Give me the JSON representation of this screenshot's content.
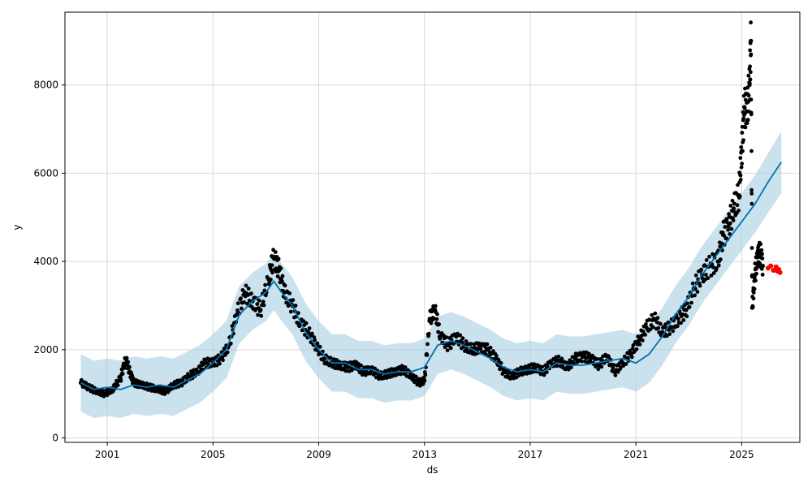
{
  "chart_data": {
    "type": "scatter",
    "title": "",
    "xlabel": "ds",
    "ylabel": "y",
    "xlim": [
      1999.4,
      2027.2
    ],
    "ylim": [
      -100,
      9650
    ],
    "x_ticks": [
      2001,
      2005,
      2009,
      2013,
      2017,
      2021,
      2025
    ],
    "x_tick_labels": [
      "2001",
      "2005",
      "2009",
      "2013",
      "2017",
      "2021",
      "2025"
    ],
    "y_ticks": [
      0,
      2000,
      4000,
      6000,
      8000
    ],
    "y_tick_labels": [
      "0",
      "2000",
      "4000",
      "6000",
      "8000"
    ],
    "grid": true,
    "colors": {
      "observed": "#000000",
      "forecast": "#0072B2",
      "interval": "#a6cde3",
      "test": "#ff0000",
      "grid": "#d9d9d9"
    },
    "observed": {
      "x": [
        2000.0,
        2000.3,
        2000.6,
        2000.9,
        2001.2,
        2001.5,
        2001.7,
        2001.85,
        2002.0,
        2002.3,
        2002.6,
        2002.9,
        2003.2,
        2003.5,
        2003.8,
        2004.1,
        2004.4,
        2004.7,
        2005.0,
        2005.3,
        2005.6,
        2005.9,
        2006.2,
        2006.5,
        2006.8,
        2007.1,
        2007.3,
        2007.5,
        2007.7,
        2008.0,
        2008.3,
        2008.6,
        2008.9,
        2009.2,
        2009.5,
        2009.8,
        2010.1,
        2010.4,
        2010.7,
        2011.0,
        2011.3,
        2011.6,
        2011.9,
        2012.2,
        2012.5,
        2012.8,
        2013.0,
        2013.2,
        2013.4,
        2013.6,
        2013.9,
        2014.2,
        2014.5,
        2014.8,
        2015.1,
        2015.4,
        2015.7,
        2016.0,
        2016.3,
        2016.6,
        2016.9,
        2017.2,
        2017.5,
        2017.8,
        2018.1,
        2018.4,
        2018.7,
        2019.0,
        2019.3,
        2019.6,
        2019.9,
        2020.2,
        2020.5,
        2020.8,
        2021.1,
        2021.4,
        2021.7,
        2022.0,
        2022.3,
        2022.6,
        2022.9,
        2023.2,
        2023.5,
        2023.8,
        2024.1,
        2024.3,
        2024.5,
        2024.7,
        2024.9,
        2025.0,
        2025.1,
        2025.2,
        2025.3,
        2025.35,
        2025.4,
        2025.5,
        2025.6,
        2025.7,
        2025.8
      ],
      "y": [
        1250,
        1150,
        1050,
        1000,
        1100,
        1350,
        1800,
        1500,
        1250,
        1200,
        1150,
        1100,
        1050,
        1200,
        1250,
        1400,
        1500,
        1700,
        1700,
        1800,
        2100,
        2800,
        3300,
        3100,
        2900,
        3600,
        4100,
        3800,
        3300,
        3000,
        2600,
        2400,
        2100,
        1800,
        1700,
        1650,
        1600,
        1650,
        1500,
        1550,
        1400,
        1450,
        1500,
        1550,
        1400,
        1250,
        1300,
        2700,
        2900,
        2300,
        2100,
        2300,
        2100,
        2000,
        2050,
        2000,
        1800,
        1500,
        1400,
        1500,
        1550,
        1600,
        1500,
        1700,
        1750,
        1600,
        1800,
        1850,
        1800,
        1650,
        1850,
        1500,
        1700,
        1900,
        2200,
        2500,
        2700,
        2400,
        2500,
        2700,
        2900,
        3400,
        3700,
        3900,
        4000,
        4600,
        4800,
        5200,
        5500,
        6500,
        7500,
        7400,
        8000,
        9000,
        2950,
        3700,
        4100,
        4200,
        3900
      ]
    },
    "forecast": {
      "x": [
        2000.0,
        2000.5,
        2001.0,
        2001.5,
        2002.0,
        2002.5,
        2003.0,
        2003.5,
        2004.0,
        2004.5,
        2005.0,
        2005.5,
        2006.0,
        2006.5,
        2007.0,
        2007.3,
        2007.6,
        2008.0,
        2008.5,
        2009.0,
        2009.5,
        2010.0,
        2010.5,
        2011.0,
        2011.5,
        2012.0,
        2012.5,
        2013.0,
        2013.5,
        2014.0,
        2014.5,
        2015.0,
        2015.5,
        2016.0,
        2016.5,
        2017.0,
        2017.5,
        2018.0,
        2018.5,
        2019.0,
        2019.5,
        2020.0,
        2020.5,
        2021.0,
        2021.5,
        2022.0,
        2022.5,
        2023.0,
        2023.5,
        2024.0,
        2024.5,
        2025.0,
        2025.5,
        2026.0,
        2026.5
      ],
      "y": [
        1250,
        1100,
        1150,
        1100,
        1200,
        1150,
        1200,
        1150,
        1300,
        1450,
        1700,
        2000,
        2800,
        3100,
        3300,
        3550,
        3300,
        3000,
        2400,
        2000,
        1700,
        1700,
        1550,
        1550,
        1450,
        1500,
        1500,
        1600,
        2100,
        2200,
        2100,
        1950,
        1800,
        1600,
        1500,
        1550,
        1500,
        1700,
        1650,
        1650,
        1700,
        1750,
        1800,
        1700,
        1900,
        2300,
        2800,
        3200,
        3700,
        4100,
        4500,
        4900,
        5300,
        5800,
        6250
      ]
    },
    "interval": {
      "x": [
        2000.0,
        2000.5,
        2001.0,
        2001.5,
        2002.0,
        2002.5,
        2003.0,
        2003.5,
        2004.0,
        2004.5,
        2005.0,
        2005.5,
        2006.0,
        2006.5,
        2007.0,
        2007.3,
        2007.6,
        2008.0,
        2008.5,
        2009.0,
        2009.5,
        2010.0,
        2010.5,
        2011.0,
        2011.5,
        2012.0,
        2012.5,
        2013.0,
        2013.5,
        2014.0,
        2014.5,
        2015.0,
        2015.5,
        2016.0,
        2016.5,
        2017.0,
        2017.5,
        2018.0,
        2018.5,
        2019.0,
        2019.5,
        2020.0,
        2020.5,
        2021.0,
        2021.5,
        2022.0,
        2022.5,
        2023.0,
        2023.5,
        2024.0,
        2024.5,
        2025.0,
        2025.5,
        2026.0,
        2026.5
      ],
      "lower": [
        600,
        450,
        500,
        450,
        550,
        500,
        550,
        500,
        650,
        800,
        1050,
        1350,
        2150,
        2450,
        2650,
        2900,
        2650,
        2350,
        1750,
        1350,
        1050,
        1050,
        900,
        900,
        800,
        850,
        850,
        950,
        1450,
        1550,
        1450,
        1300,
        1150,
        950,
        850,
        900,
        850,
        1050,
        1000,
        1000,
        1050,
        1100,
        1150,
        1050,
        1250,
        1650,
        2150,
        2550,
        3050,
        3450,
        3850,
        4250,
        4650,
        5100,
        5550
      ],
      "upper": [
        1900,
        1750,
        1800,
        1750,
        1850,
        1800,
        1850,
        1800,
        1950,
        2100,
        2350,
        2650,
        3450,
        3750,
        3950,
        4200,
        3950,
        3650,
        3050,
        2650,
        2350,
        2350,
        2200,
        2200,
        2100,
        2150,
        2150,
        2250,
        2750,
        2850,
        2750,
        2600,
        2450,
        2250,
        2150,
        2200,
        2150,
        2350,
        2300,
        2300,
        2350,
        2400,
        2450,
        2350,
        2550,
        2950,
        3450,
        3850,
        4350,
        4750,
        5150,
        5550,
        5950,
        6450,
        6950
      ]
    },
    "test": {
      "x": [
        2026.0,
        2026.1,
        2026.2,
        2026.3,
        2026.35,
        2026.4,
        2026.45
      ],
      "y": [
        3850,
        3900,
        3800,
        3880,
        3780,
        3820,
        3750
      ]
    }
  }
}
